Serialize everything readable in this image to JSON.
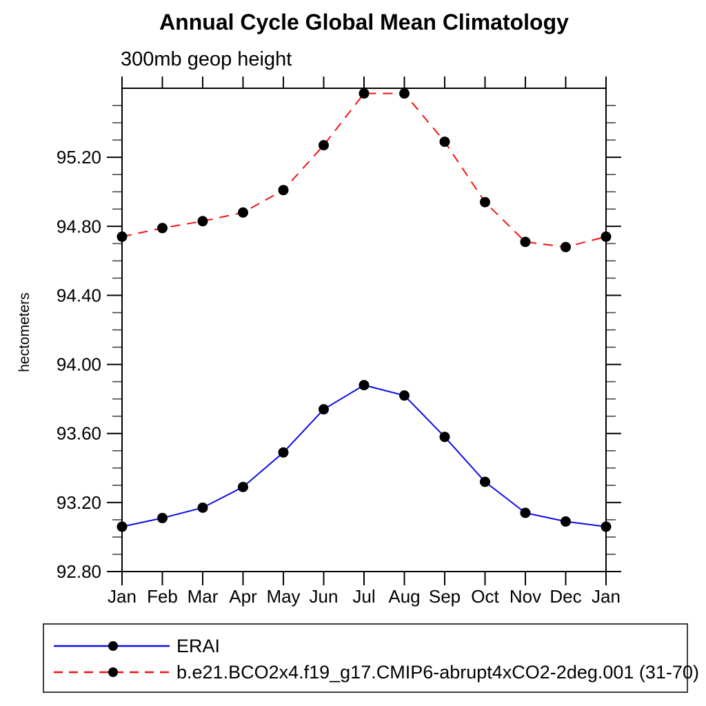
{
  "title": "Annual Cycle Global Mean Climatology",
  "subtitle": "300mb geop height",
  "chart_data": {
    "type": "line",
    "x_categories": [
      "Jan",
      "Feb",
      "Mar",
      "Apr",
      "May",
      "Jun",
      "Jul",
      "Aug",
      "Sep",
      "Oct",
      "Nov",
      "Dec",
      "Jan"
    ],
    "xlabel": "",
    "ylabel": "hectometers",
    "ylim": [
      92.8,
      95.6
    ],
    "ytick_major_interval": 0.4,
    "ytick_minor_interval": 0.1,
    "ytick_labels": [
      "92.80",
      "93.20",
      "93.60",
      "94.00",
      "94.40",
      "94.80",
      "95.20"
    ],
    "grid": false,
    "legend_position": "bottom-left-box",
    "marker": "filled-circle",
    "marker_color": "#000000",
    "axis_color": "#000000",
    "series": [
      {
        "name": "ERAI",
        "color": "#0a0ae8",
        "style": "solid",
        "values": [
          93.06,
          93.11,
          93.17,
          93.29,
          93.49,
          93.74,
          93.88,
          93.82,
          93.58,
          93.32,
          93.14,
          93.09,
          93.06
        ]
      },
      {
        "name": "b.e21.BCO2x4.f19_g17.CMIP6-abrupt4xCO2-2deg.001 (31-70)",
        "color": "#f50f0f",
        "style": "dashed",
        "values": [
          94.74,
          94.79,
          94.83,
          94.88,
          95.01,
          95.27,
          95.57,
          95.57,
          95.29,
          94.94,
          94.71,
          94.68,
          94.74
        ]
      }
    ]
  }
}
